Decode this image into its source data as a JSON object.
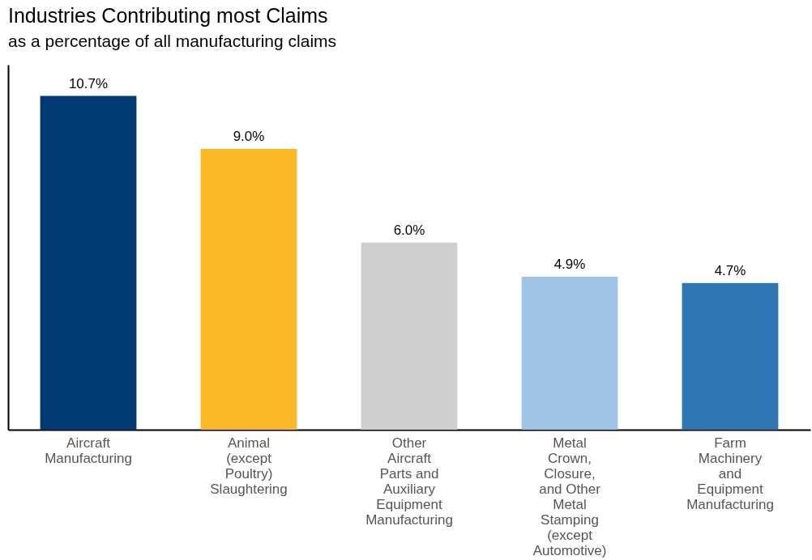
{
  "chart_data": {
    "type": "bar",
    "title": "Industries Contributing most Claims",
    "subtitle": "as a percentage of all manufacturing claims",
    "categories": [
      "Aircraft Manufacturing",
      "Animal (except Poultry) Slaughtering",
      "Other Aircraft Parts and Auxiliary Equipment Manufacturing",
      "Metal Crown, Closure, and Other Metal Stamping (except Automotive)",
      "Farm Machinery and Equipment Manufacturing"
    ],
    "values": [
      10.7,
      9.0,
      6.0,
      4.9,
      4.7
    ],
    "colors": [
      "#003a70",
      "#fbb927",
      "#d0cfd0",
      "#9fc4e6",
      "#2e75b6"
    ],
    "value_labels": [
      "10.7%",
      "9.0%",
      "6.0%",
      "4.9%",
      "4.7%"
    ],
    "ylim": [
      0,
      11.7
    ],
    "grid": false,
    "tick_labels": "x"
  }
}
